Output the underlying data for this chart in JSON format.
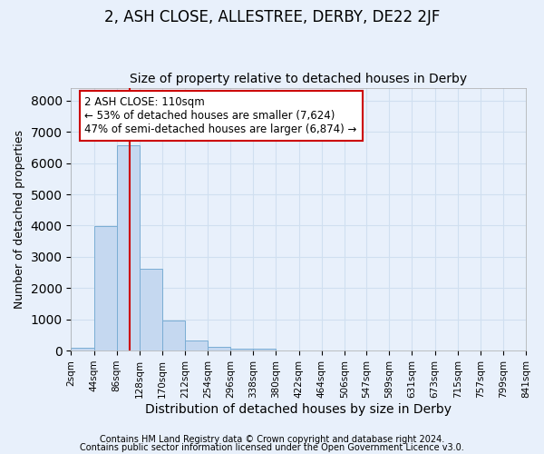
{
  "title_line1": "2, ASH CLOSE, ALLESTREE, DERBY, DE22 2JF",
  "title_line2": "Size of property relative to detached houses in Derby",
  "xlabel": "Distribution of detached houses by size in Derby",
  "ylabel": "Number of detached properties",
  "footnote1": "Contains HM Land Registry data © Crown copyright and database right 2024.",
  "footnote2": "Contains public sector information licensed under the Open Government Licence v3.0.",
  "bar_left_edges": [
    2,
    44,
    86,
    128,
    170,
    212,
    254,
    296,
    338,
    380,
    422,
    464,
    506,
    547,
    589,
    631,
    673,
    715,
    757,
    799
  ],
  "bar_heights": [
    100,
    3980,
    6560,
    2630,
    950,
    330,
    110,
    70,
    60,
    0,
    0,
    0,
    0,
    0,
    0,
    0,
    0,
    0,
    0,
    0
  ],
  "bin_width": 42,
  "bar_color": "#c5d8f0",
  "bar_edge_color": "#7aadd4",
  "tick_labels": [
    "2sqm",
    "44sqm",
    "86sqm",
    "128sqm",
    "170sqm",
    "212sqm",
    "254sqm",
    "296sqm",
    "338sqm",
    "380sqm",
    "422sqm",
    "464sqm",
    "506sqm",
    "547sqm",
    "589sqm",
    "631sqm",
    "673sqm",
    "715sqm",
    "757sqm",
    "799sqm",
    "841sqm"
  ],
  "ylim": [
    0,
    8400
  ],
  "yticks": [
    0,
    1000,
    2000,
    3000,
    4000,
    5000,
    6000,
    7000,
    8000
  ],
  "property_size": 110,
  "vline_color": "#cc0000",
  "annotation_line1": "2 ASH CLOSE: 110sqm",
  "annotation_line2": "← 53% of detached houses are smaller (7,624)",
  "annotation_line3": "47% of semi-detached houses are larger (6,874) →",
  "annotation_box_color": "#ffffff",
  "annotation_box_edge": "#cc0000",
  "grid_color": "#d0dff0",
  "bg_color": "#e8f0fb",
  "title1_fontsize": 12,
  "title2_fontsize": 10,
  "xlabel_fontsize": 10,
  "ylabel_fontsize": 9,
  "tick_fontsize": 7.5,
  "annotation_fontsize": 8.5,
  "footnote_fontsize": 7
}
